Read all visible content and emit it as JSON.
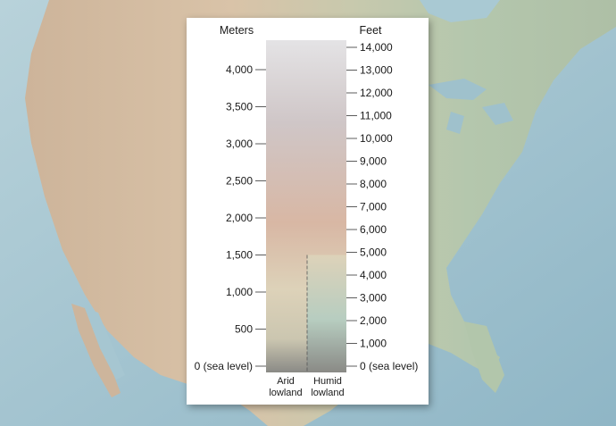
{
  "legend": {
    "left_unit": "Meters",
    "right_unit": "Feet",
    "meters_ticks": [
      {
        "value": 0,
        "label": "0 (sea level)"
      },
      {
        "value": 500,
        "label": "500"
      },
      {
        "value": 1000,
        "label": "1,000"
      },
      {
        "value": 1500,
        "label": "1,500"
      },
      {
        "value": 2000,
        "label": "2,000"
      },
      {
        "value": 2500,
        "label": "2,500"
      },
      {
        "value": 3000,
        "label": "3,000"
      },
      {
        "value": 3500,
        "label": "3,500"
      },
      {
        "value": 4000,
        "label": "4,000"
      }
    ],
    "feet_ticks": [
      {
        "value": 0,
        "label": "0 (sea level)"
      },
      {
        "value": 1000,
        "label": "1,000"
      },
      {
        "value": 2000,
        "label": "2,000"
      },
      {
        "value": 3000,
        "label": "3,000"
      },
      {
        "value": 4000,
        "label": "4,000"
      },
      {
        "value": 5000,
        "label": "5,000"
      },
      {
        "value": 6000,
        "label": "6,000"
      },
      {
        "value": 7000,
        "label": "7,000"
      },
      {
        "value": 8000,
        "label": "8,000"
      },
      {
        "value": 9000,
        "label": "9,000"
      },
      {
        "value": 10000,
        "label": "10,000"
      },
      {
        "value": 11000,
        "label": "11,000"
      },
      {
        "value": 12000,
        "label": "12,000"
      },
      {
        "value": 13000,
        "label": "13,000"
      },
      {
        "value": 14000,
        "label": "14,000"
      }
    ],
    "columns": {
      "arid_line1": "Arid",
      "arid_line2": "lowland",
      "humid_line1": "Humid",
      "humid_line2": "lowland"
    },
    "humid_divider_top_meters": 1500,
    "colors": {
      "top": "#e4e3e5",
      "upper_mid": "#cfc6c7",
      "middle": "#d8b7a4",
      "lower_mid": "#ddd2b9",
      "arid_low": "#cbc6b0",
      "humid_low": "#b7cdc0",
      "base": "#8a8a86",
      "ocean": "#a9c9d3",
      "land": "#b7c9ad",
      "land_west": "#d4bfa6"
    }
  }
}
